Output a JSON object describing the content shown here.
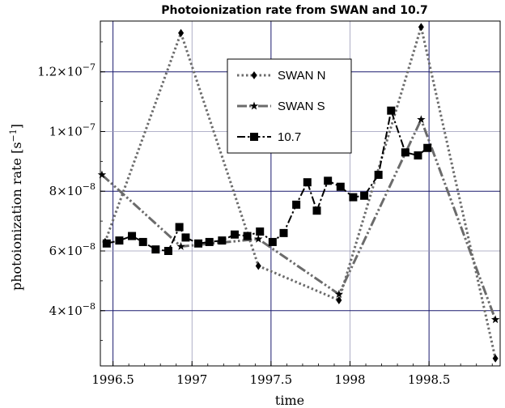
{
  "chart_data": {
    "type": "line",
    "title": "Photoionization rate from SWAN and 10.7",
    "xlabel": "time",
    "ylabel": "photoionization rate [s",
    "ylabel_exponent": "−1",
    "ylabel_close": "]",
    "xlim": [
      1996.42,
      1998.95
    ],
    "ylim": [
      2.15e-08,
      1.37e-07
    ],
    "x_ticks": [
      {
        "value": 1996.5,
        "label": "1996.5"
      },
      {
        "value": 1997.0,
        "label": "1997"
      },
      {
        "value": 1997.5,
        "label": "1997.5"
      },
      {
        "value": 1998.0,
        "label": "1998"
      },
      {
        "value": 1998.5,
        "label": "1998.5"
      }
    ],
    "y_ticks": [
      {
        "value": 4e-08,
        "mantissa": "4",
        "times": "×10",
        "exponent": "−8"
      },
      {
        "value": 6e-08,
        "mantissa": "6",
        "times": "×10",
        "exponent": "−8"
      },
      {
        "value": 8e-08,
        "mantissa": "8",
        "times": "×10",
        "exponent": "−8"
      },
      {
        "value": 1e-07,
        "mantissa": "1",
        "times": "×10",
        "exponent": "−7"
      },
      {
        "value": 1.2e-07,
        "mantissa": "1.2",
        "times": "×10",
        "exponent": "−7"
      }
    ],
    "grid": true,
    "legend_position": "top-center",
    "series": [
      {
        "name": "SWAN N",
        "marker": "diamond",
        "color": "#6b6b6b",
        "line_style": "dotted",
        "x": [
          1996.45,
          1996.93,
          1997.42,
          1997.93,
          1998.45,
          1998.92
        ],
        "y": [
          6.3e-08,
          1.33e-07,
          5.5e-08,
          4.35e-08,
          1.35e-07,
          2.4e-08
        ]
      },
      {
        "name": "SWAN S",
        "marker": "star",
        "color": "#6b6b6b",
        "line_style": "dash-dot-dot",
        "x": [
          1996.43,
          1996.93,
          1997.42,
          1997.93,
          1998.45,
          1998.92
        ],
        "y": [
          8.55e-08,
          6.15e-08,
          6.4e-08,
          4.55e-08,
          1.04e-07,
          3.7e-08
        ]
      },
      {
        "name": "10.7",
        "marker": "square",
        "color": "#000000",
        "line_style": "dash-dot",
        "x": [
          1996.46,
          1996.54,
          1996.62,
          1996.69,
          1996.77,
          1996.85,
          1996.92,
          1996.96,
          1997.04,
          1997.11,
          1997.19,
          1997.27,
          1997.35,
          1997.43,
          1997.51,
          1997.58,
          1997.66,
          1997.73,
          1997.79,
          1997.86,
          1997.94,
          1998.02,
          1998.09,
          1998.18,
          1998.26,
          1998.35,
          1998.43,
          1998.49
        ],
        "y": [
          6.25e-08,
          6.35e-08,
          6.5e-08,
          6.3e-08,
          6.05e-08,
          6e-08,
          6.8e-08,
          6.45e-08,
          6.25e-08,
          6.3e-08,
          6.35e-08,
          6.55e-08,
          6.5e-08,
          6.65e-08,
          6.3e-08,
          6.6e-08,
          7.55e-08,
          8.3e-08,
          7.35e-08,
          8.35e-08,
          8.15e-08,
          7.8e-08,
          7.85e-08,
          8.55e-08,
          1.07e-07,
          9.3e-08,
          9.2e-08,
          9.45e-08
        ]
      }
    ]
  }
}
